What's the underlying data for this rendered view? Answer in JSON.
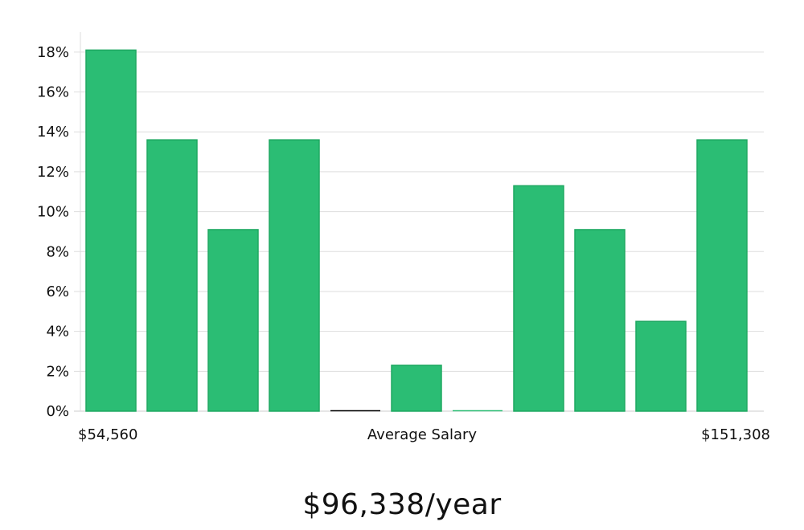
{
  "chart_data": {
    "type": "bar",
    "title": "",
    "xlabel": "Average Salary",
    "ylabel": "",
    "x_min_label": "$54,560",
    "x_max_label": "$151,308",
    "y_tick_labels": [
      "0%",
      "2%",
      "4%",
      "6%",
      "8%",
      "10%",
      "12%",
      "14%",
      "16%",
      "18%"
    ],
    "ylim": [
      0,
      19
    ],
    "grid": true,
    "unit": "%",
    "values": [
      18.1,
      13.6,
      9.1,
      13.6,
      0,
      2.3,
      0,
      11.3,
      9.1,
      4.5,
      13.6
    ],
    "bar_color": "#2bbd74",
    "bar_edge_color": "#1fa862",
    "zero_bar_color": "#000000"
  },
  "summary": {
    "salary_text": "$96,338/year"
  }
}
